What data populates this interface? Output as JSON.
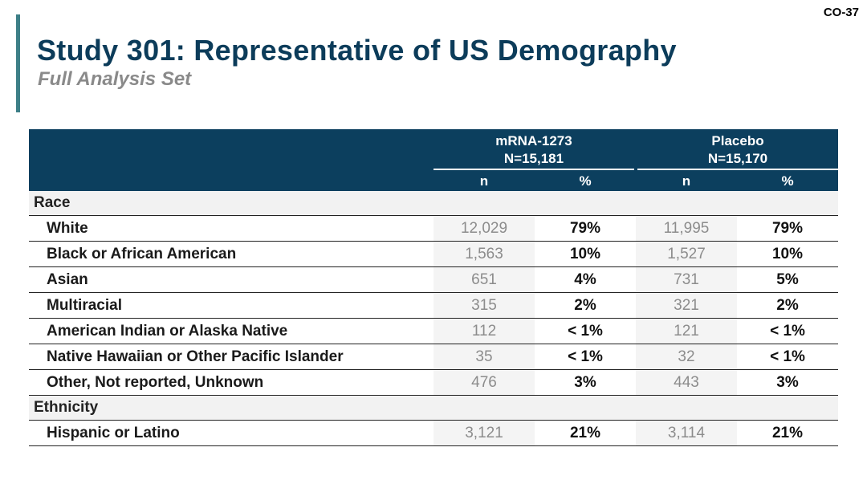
{
  "slide_number": "CO-37",
  "title": "Study 301: Representative of US Demography",
  "subtitle": "Full Analysis Set",
  "table": {
    "groups": [
      {
        "name": "mRNA-1273",
        "n_label": "N=15,181"
      },
      {
        "name": "Placebo",
        "n_label": "N=15,170"
      }
    ],
    "sub_headers": {
      "n": "n",
      "pct": "%"
    },
    "sections": [
      {
        "label": "Race",
        "rows": [
          {
            "label": "White",
            "values": [
              "12,029",
              "79%",
              "11,995",
              "79%"
            ]
          },
          {
            "label": "Black or African American",
            "values": [
              "1,563",
              "10%",
              "1,527",
              "10%"
            ]
          },
          {
            "label": "Asian",
            "values": [
              "651",
              "4%",
              "731",
              "5%"
            ]
          },
          {
            "label": "Multiracial",
            "values": [
              "315",
              "2%",
              "321",
              "2%"
            ]
          },
          {
            "label": "American Indian or Alaska Native",
            "values": [
              "112",
              "< 1%",
              "121",
              "< 1%"
            ]
          },
          {
            "label": "Native Hawaiian or Other Pacific Islander",
            "values": [
              "35",
              "< 1%",
              "32",
              "< 1%"
            ]
          },
          {
            "label": "Other, Not reported, Unknown",
            "values": [
              "476",
              "3%",
              "443",
              "3%"
            ]
          }
        ]
      },
      {
        "label": "Ethnicity",
        "rows": [
          {
            "label": "Hispanic or Latino",
            "values": [
              "3,121",
              "21%",
              "3,114",
              "21%"
            ]
          }
        ]
      }
    ]
  }
}
